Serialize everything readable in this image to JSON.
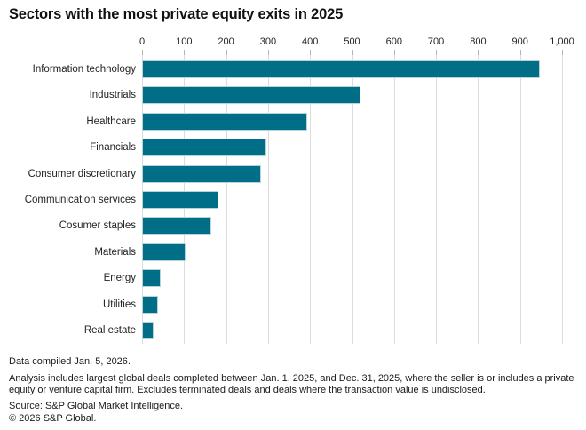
{
  "chart_data": {
    "type": "bar",
    "orientation": "horizontal",
    "title": "Sectors with the most private equity exits in 2025",
    "categories": [
      "Information technology",
      "Industrials",
      "Healthcare",
      "Financials",
      "Consumer discretionary",
      "Communication services",
      "Cosumer staples",
      "Materials",
      "Energy",
      "Utilities",
      "Real estate"
    ],
    "values": [
      948,
      520,
      393,
      296,
      283,
      182,
      164,
      104,
      44,
      39,
      27
    ],
    "xlim": [
      0,
      1000
    ],
    "x_ticks": [
      0,
      100,
      200,
      300,
      400,
      500,
      600,
      700,
      800,
      900,
      1000
    ],
    "x_tick_labels": [
      "0",
      "100",
      "200",
      "300",
      "400",
      "500",
      "600",
      "700",
      "800",
      "900",
      "1,000"
    ],
    "xlabel": "",
    "ylabel": "",
    "grid": "vertical",
    "legend": "none",
    "bar_color": "#006e87",
    "bar_border_color": "#b9d3da",
    "gridline_color": "#dcdcdc"
  },
  "footnotes": {
    "compiled": "Data compiled Jan. 5, 2026.",
    "analysis": "Analysis includes largest global deals completed between Jan. 1, 2025, and Dec. 31, 2025, where the seller is or includes a private equity or venture capital firm. Excludes terminated deals and deals where the transaction value is undisclosed.",
    "source": "Source: S&P Global Market Intelligence.",
    "copyright": "© 2026 S&P Global."
  }
}
